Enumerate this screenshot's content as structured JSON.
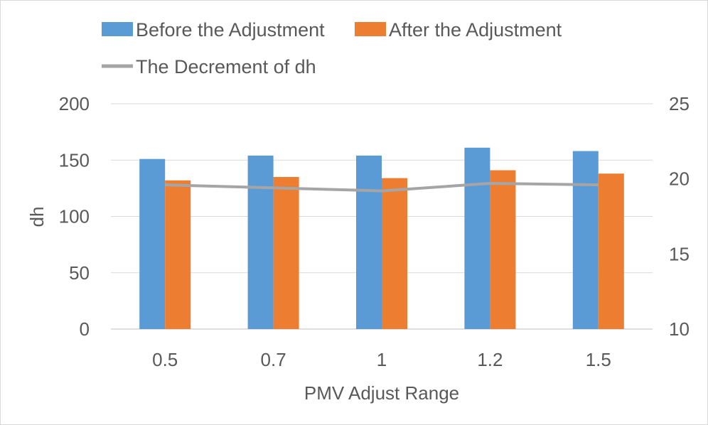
{
  "chart_data": {
    "type": "bar",
    "categories": [
      "0.5",
      "0.7",
      "1",
      "1.2",
      "1.5"
    ],
    "series": [
      {
        "name": "Before the Adjustment",
        "kind": "bar",
        "axis": "left",
        "color": "#5b9bd5",
        "values": [
          151,
          154,
          154,
          161,
          158
        ]
      },
      {
        "name": "After the Adjustment",
        "kind": "bar",
        "axis": "left",
        "color": "#ed7d31",
        "values": [
          132,
          135,
          134,
          141,
          138
        ]
      },
      {
        "name": "The Decrement of dh",
        "kind": "line",
        "axis": "right",
        "color": "#a5a5a5",
        "values": [
          19.6,
          19.4,
          19.2,
          19.7,
          19.6
        ]
      }
    ],
    "xlabel": "PMV Adjust Range",
    "ylabel": "dh",
    "ylim": [
      0,
      200
    ],
    "y_ticks": [
      "0",
      "50",
      "100",
      "150",
      "200"
    ],
    "y2lim": [
      10,
      25
    ],
    "y2_ticks": [
      "10",
      "15",
      "20",
      "25"
    ],
    "grid": true,
    "legend_position": "top"
  }
}
